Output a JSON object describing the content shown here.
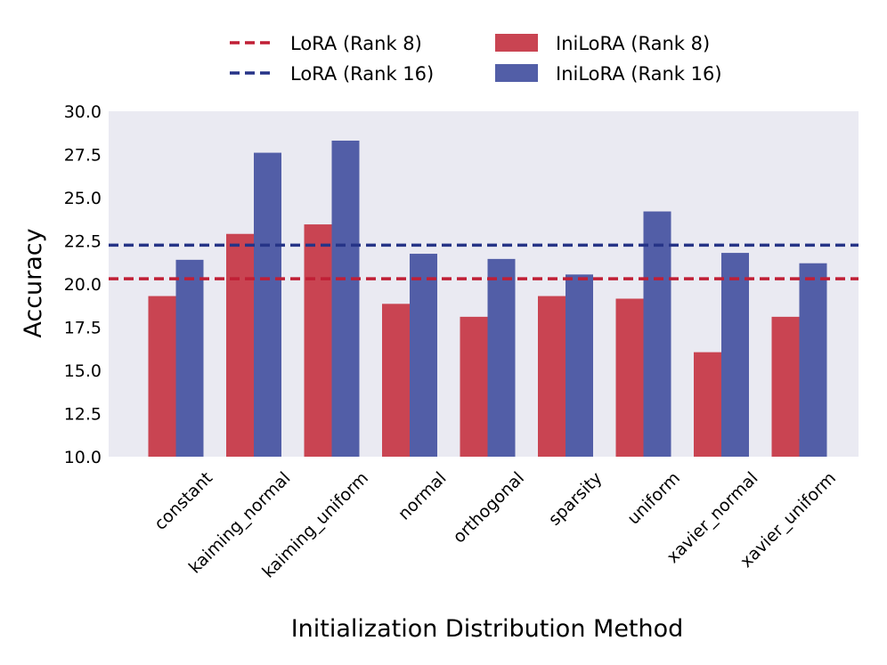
{
  "chart_data": {
    "type": "bar",
    "title": "",
    "xlabel": "Initialization Distribution Method",
    "ylabel": "Accuracy",
    "ylim": [
      10.0,
      30.0
    ],
    "yticks": [
      "10.0",
      "12.5",
      "15.0",
      "17.5",
      "20.0",
      "22.5",
      "25.0",
      "27.5",
      "30.0"
    ],
    "categories": [
      "constant",
      "kaiming_normal",
      "kaiming_uniform",
      "normal",
      "orthogonal",
      "sparsity",
      "uniform",
      "xavier_normal",
      "xavier_uniform"
    ],
    "series": [
      {
        "name": "IniLoRA (Rank 8)",
        "color": "#c94452",
        "values": [
          19.3,
          22.9,
          23.45,
          18.85,
          18.1,
          19.3,
          19.15,
          16.05,
          18.1
        ]
      },
      {
        "name": "IniLoRA (Rank 16)",
        "color": "#525ea7",
        "values": [
          21.4,
          27.6,
          28.3,
          21.75,
          21.45,
          20.55,
          24.2,
          21.8,
          21.2
        ]
      }
    ],
    "reference_lines": [
      {
        "name": "LoRA (Rank 8)",
        "color": "#c01f35",
        "value": 20.3
      },
      {
        "name": "LoRA (Rank 16)",
        "color": "#263487",
        "value": 22.25
      }
    ],
    "legend": {
      "position": "top-center",
      "entries": [
        "LoRA (Rank 8)",
        "IniLoRA (Rank 8)",
        "LoRA (Rank 16)",
        "IniLoRA (Rank 16)"
      ]
    },
    "background": "#eaeaf2",
    "grid": false
  }
}
